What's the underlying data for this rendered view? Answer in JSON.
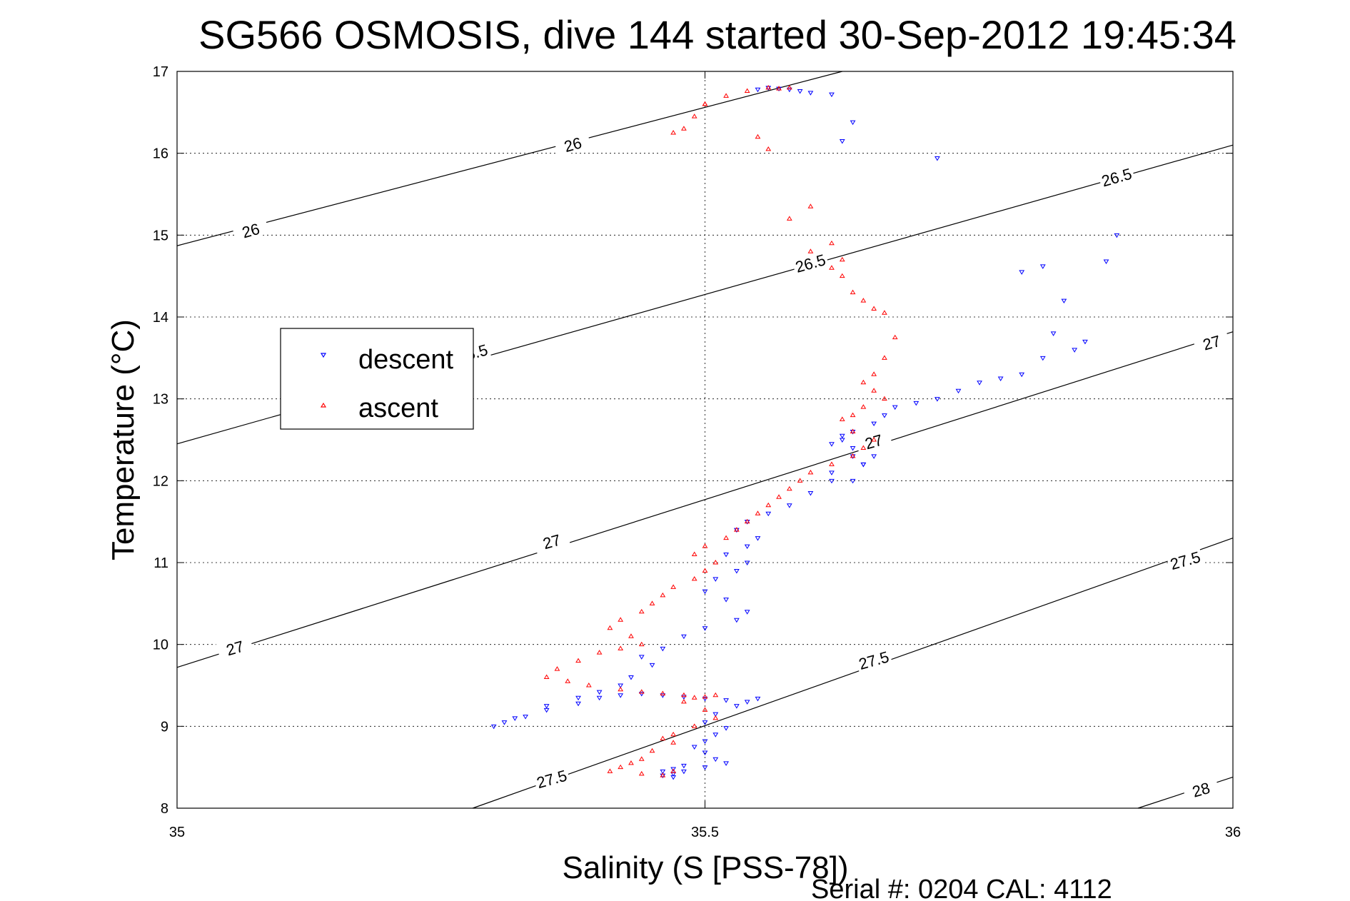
{
  "chart_data": {
    "type": "scatter",
    "title": "SG566 OSMOSIS, dive 144 started 30-Sep-2012 19:45:34",
    "xlabel": "Salinity (S [PSS-78])",
    "ylabel": "Temperature (°C)",
    "xlim": [
      35,
      36
    ],
    "ylim": [
      8,
      17
    ],
    "xticks": [
      "35",
      "35.5",
      "36"
    ],
    "yticks": [
      "8",
      "9",
      "10",
      "11",
      "12",
      "13",
      "14",
      "15",
      "16",
      "17"
    ],
    "grid": "dotted",
    "footer": "Serial #: 0204  CAL: 4112",
    "legend": {
      "position": "left",
      "entries": [
        "descent",
        "ascent"
      ]
    },
    "colors": {
      "descent": "#0000ff",
      "ascent": "#ff0000",
      "contour": "#000000"
    },
    "contours": [
      {
        "sigma": "26",
        "x": [
          35,
          35.63
        ],
        "y": [
          14.87,
          17
        ]
      },
      {
        "sigma": "26.5",
        "x": [
          35,
          36
        ],
        "y": [
          12.45,
          16.1
        ]
      },
      {
        "sigma": "27",
        "x": [
          35,
          36
        ],
        "y": [
          9.72,
          13.82
        ]
      },
      {
        "sigma": "27.5",
        "x": [
          35.28,
          36
        ],
        "y": [
          8,
          11.3
        ]
      },
      {
        "sigma": "28",
        "x": [
          35.91,
          36
        ],
        "y": [
          8,
          8.38
        ]
      }
    ],
    "contour_labels": [
      {
        "text": "26",
        "x": 35.375,
        "y": 16.1
      },
      {
        "text": "26",
        "x": 35.07,
        "y": 15.05
      },
      {
        "text": "26.5",
        "x": 35.89,
        "y": 15.7
      },
      {
        "text": "26.5",
        "x": 35.6,
        "y": 14.65
      },
      {
        "text": "26.5",
        "x": 35.28,
        "y": 13.55
      },
      {
        "text": "27",
        "x": 35.98,
        "y": 13.68
      },
      {
        "text": "27",
        "x": 35.66,
        "y": 12.47
      },
      {
        "text": "27",
        "x": 35.355,
        "y": 11.25
      },
      {
        "text": "27",
        "x": 35.055,
        "y": 9.95
      },
      {
        "text": "27.5",
        "x": 35.955,
        "y": 11.02
      },
      {
        "text": "27.5",
        "x": 35.66,
        "y": 9.8
      },
      {
        "text": "27.5",
        "x": 35.355,
        "y": 8.35
      },
      {
        "text": "28",
        "x": 35.97,
        "y": 8.22
      }
    ],
    "series": [
      {
        "name": "descent",
        "marker": "triangle-down",
        "x": [
          35.55,
          35.56,
          35.57,
          35.58,
          35.59,
          35.6,
          35.62,
          35.64,
          35.63,
          35.72,
          35.8,
          35.82,
          35.88,
          35.89,
          35.84,
          35.83,
          35.86,
          35.85,
          35.82,
          35.8,
          35.78,
          35.76,
          35.74,
          35.72,
          35.7,
          35.68,
          35.67,
          35.66,
          35.64,
          35.63,
          35.62,
          35.64,
          35.66,
          35.63,
          35.65,
          35.62,
          35.64,
          35.65,
          35.64,
          35.62,
          35.6,
          35.58,
          35.56,
          35.54,
          35.53,
          35.55,
          35.54,
          35.52,
          35.54,
          35.53,
          35.51,
          35.5,
          35.52,
          35.54,
          35.53,
          35.5,
          35.48,
          35.46,
          35.44,
          35.45,
          35.43,
          35.42,
          35.4,
          35.38,
          35.35,
          35.32,
          35.3,
          35.31,
          35.33,
          35.35,
          35.38,
          35.4,
          35.42,
          35.44,
          35.46,
          35.48,
          35.5,
          35.52,
          35.54,
          35.55,
          35.53,
          35.51,
          35.5,
          35.52,
          35.51,
          35.5,
          35.49,
          35.5,
          35.51,
          35.52,
          35.5,
          35.48,
          35.47,
          35.46,
          35.47,
          35.48,
          35.46,
          35.47
        ],
        "y": [
          16.78,
          16.8,
          16.79,
          16.78,
          16.76,
          16.74,
          16.72,
          16.38,
          16.15,
          15.94,
          14.55,
          14.62,
          14.68,
          15.0,
          14.2,
          13.8,
          13.7,
          13.6,
          13.5,
          13.3,
          13.25,
          13.2,
          13.1,
          13.0,
          12.95,
          12.9,
          12.8,
          12.7,
          12.6,
          12.55,
          12.45,
          12.4,
          12.3,
          12.5,
          12.2,
          12.1,
          12.0,
          12.2,
          12.3,
          12.0,
          11.85,
          11.7,
          11.6,
          11.5,
          11.4,
          11.3,
          11.2,
          11.1,
          11.0,
          10.9,
          10.8,
          10.65,
          10.55,
          10.4,
          10.3,
          10.2,
          10.1,
          9.95,
          9.85,
          9.75,
          9.6,
          9.5,
          9.42,
          9.35,
          9.25,
          9.1,
          9.0,
          9.05,
          9.12,
          9.2,
          9.28,
          9.35,
          9.38,
          9.4,
          9.38,
          9.36,
          9.34,
          9.32,
          9.3,
          9.34,
          9.25,
          9.15,
          9.05,
          8.98,
          8.9,
          8.82,
          8.75,
          8.68,
          8.6,
          8.55,
          8.5,
          8.45,
          8.42,
          8.4,
          8.48,
          8.52,
          8.45,
          8.38
        ]
      },
      {
        "name": "ascent",
        "marker": "triangle-up",
        "x": [
          35.5,
          35.49,
          35.48,
          35.47,
          35.5,
          35.52,
          35.54,
          35.56,
          35.57,
          35.58,
          35.55,
          35.56,
          35.58,
          35.6,
          35.6,
          35.62,
          35.63,
          35.62,
          35.63,
          35.64,
          35.65,
          35.66,
          35.67,
          35.68,
          35.67,
          35.66,
          35.65,
          35.66,
          35.67,
          35.65,
          35.64,
          35.63,
          35.64,
          35.66,
          35.65,
          35.64,
          35.62,
          35.6,
          35.59,
          35.58,
          35.57,
          35.56,
          35.55,
          35.54,
          35.53,
          35.52,
          35.5,
          35.49,
          35.51,
          35.5,
          35.49,
          35.47,
          35.46,
          35.45,
          35.44,
          35.42,
          35.41,
          35.43,
          35.44,
          35.42,
          35.4,
          35.38,
          35.36,
          35.35,
          35.37,
          35.39,
          35.42,
          35.44,
          35.46,
          35.48,
          35.5,
          35.51,
          35.49,
          35.48,
          35.5,
          35.51,
          35.49,
          35.47,
          35.46,
          35.47,
          35.45,
          35.44,
          35.43,
          35.42,
          35.41,
          35.44,
          35.46,
          35.47
        ],
        "y": [
          16.6,
          16.45,
          16.3,
          16.25,
          16.6,
          16.7,
          16.76,
          16.8,
          16.79,
          16.8,
          16.2,
          16.05,
          15.2,
          15.35,
          14.8,
          14.9,
          14.7,
          14.6,
          14.5,
          14.3,
          14.2,
          14.1,
          14.05,
          13.75,
          13.5,
          13.3,
          13.2,
          13.1,
          13.0,
          12.9,
          12.8,
          12.75,
          12.6,
          12.5,
          12.4,
          12.3,
          12.2,
          12.1,
          12.0,
          11.9,
          11.8,
          11.7,
          11.6,
          11.5,
          11.4,
          11.3,
          11.2,
          11.1,
          11.0,
          10.9,
          10.8,
          10.7,
          10.6,
          10.5,
          10.4,
          10.3,
          10.2,
          10.1,
          10.0,
          9.95,
          9.9,
          9.8,
          9.7,
          9.6,
          9.55,
          9.5,
          9.45,
          9.42,
          9.4,
          9.38,
          9.36,
          9.38,
          9.35,
          9.3,
          9.2,
          9.1,
          9.0,
          8.9,
          8.85,
          8.8,
          8.7,
          8.6,
          8.55,
          8.5,
          8.45,
          8.42,
          8.4,
          8.45
        ]
      }
    ]
  }
}
